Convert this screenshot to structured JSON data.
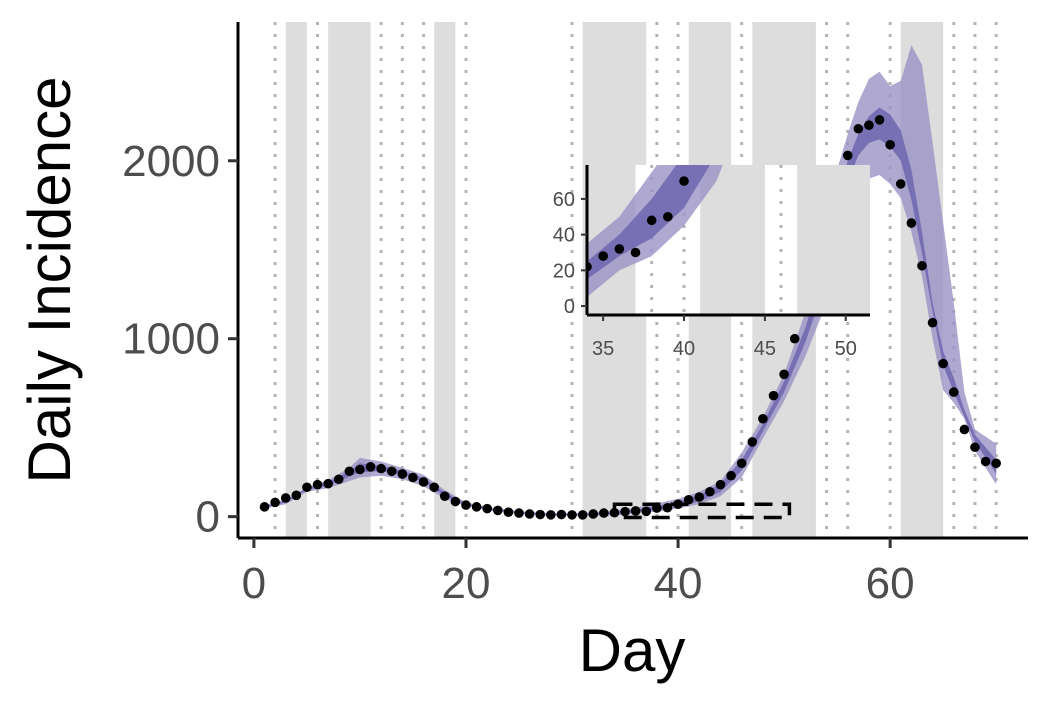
{
  "chart_data": {
    "type": "scatter",
    "xlabel": "Day",
    "ylabel": "Daily Incidence",
    "xlim": [
      -1.5,
      73
    ],
    "ylim": [
      -120,
      2780
    ],
    "x_ticks": [
      0,
      20,
      40,
      60
    ],
    "y_ticks": [
      0,
      1000,
      2000
    ],
    "grid": false,
    "colors": {
      "band_outer": "#9b93c7",
      "band_inner": "#6f66b0",
      "points": "#000000",
      "shade": "#dddddd",
      "dotted_lines": "#b3b3b3"
    },
    "shaded_periods": [
      [
        3,
        5
      ],
      [
        7,
        11
      ],
      [
        17,
        19
      ],
      [
        31,
        37
      ],
      [
        41,
        45
      ],
      [
        47,
        53
      ],
      [
        61,
        65
      ]
    ],
    "dotted_days": [
      2,
      6,
      12,
      14,
      16,
      20,
      30,
      38,
      40,
      46,
      54,
      56,
      60,
      66,
      68,
      70
    ],
    "observed": {
      "x": [
        1,
        2,
        3,
        4,
        5,
        6,
        7,
        8,
        9,
        10,
        11,
        12,
        13,
        14,
        15,
        16,
        17,
        18,
        19,
        20,
        21,
        22,
        23,
        24,
        25,
        26,
        27,
        28,
        29,
        30,
        31,
        32,
        33,
        34,
        35,
        36,
        37,
        38,
        39,
        40,
        41,
        42,
        43,
        44,
        45,
        46,
        47,
        48,
        49,
        50,
        51,
        52,
        53,
        54,
        55,
        56,
        57,
        58,
        59,
        60,
        61,
        62,
        63,
        64,
        65,
        66,
        67,
        68,
        69,
        70
      ],
      "y": [
        55,
        80,
        105,
        120,
        165,
        180,
        185,
        210,
        255,
        265,
        280,
        270,
        255,
        240,
        220,
        195,
        165,
        115,
        85,
        65,
        55,
        45,
        35,
        25,
        20,
        15,
        12,
        10,
        12,
        10,
        10,
        15,
        20,
        22,
        28,
        32,
        30,
        48,
        50,
        70,
        95,
        110,
        140,
        180,
        230,
        300,
        420,
        550,
        680,
        800,
        1000,
        1290,
        1630,
        1790,
        1900,
        2030,
        2180,
        2200,
        2230,
        2090,
        1870,
        1650,
        1410,
        1090,
        860,
        700,
        490,
        390,
        310,
        300
      ]
    },
    "band_outer": {
      "x": [
        1,
        3,
        5,
        7,
        9,
        10,
        12,
        14,
        16,
        18,
        20,
        22,
        25,
        28,
        31,
        34,
        36,
        38,
        40,
        42,
        44,
        46,
        48,
        50,
        52,
        54,
        55,
        56,
        57,
        58,
        59,
        60,
        61,
        62,
        63,
        64,
        65,
        66,
        67,
        68,
        70
      ],
      "lower": [
        45,
        70,
        140,
        160,
        200,
        220,
        230,
        210,
        170,
        100,
        60,
        35,
        15,
        5,
        5,
        5,
        20,
        28,
        45,
        70,
        115,
        220,
        440,
        650,
        900,
        1200,
        1400,
        1650,
        1850,
        1900,
        1920,
        1870,
        1790,
        1600,
        1350,
        1000,
        710,
        640,
        550,
        370,
        180
      ],
      "upper": [
        65,
        95,
        165,
        205,
        275,
        330,
        310,
        275,
        235,
        150,
        80,
        55,
        30,
        20,
        20,
        35,
        50,
        75,
        100,
        140,
        200,
        360,
        560,
        800,
        1150,
        1600,
        1950,
        2150,
        2330,
        2460,
        2500,
        2420,
        2450,
        2650,
        2540,
        2100,
        1650,
        1200,
        700,
        490,
        410
      ]
    },
    "band_inner": {
      "x": [
        1,
        3,
        5,
        7,
        9,
        10,
        12,
        14,
        16,
        18,
        20,
        22,
        25,
        28,
        31,
        34,
        36,
        38,
        40,
        42,
        44,
        46,
        48,
        50,
        52,
        54,
        55,
        56,
        57,
        58,
        59,
        60,
        61,
        62,
        63,
        64,
        65,
        66,
        67,
        68,
        70
      ],
      "lower": [
        50,
        80,
        150,
        175,
        225,
        250,
        255,
        235,
        195,
        115,
        68,
        42,
        20,
        10,
        10,
        15,
        28,
        38,
        55,
        85,
        140,
        260,
        480,
        700,
        980,
        1330,
        1600,
        1880,
        2030,
        2100,
        2120,
        2080,
        2000,
        1780,
        1480,
        1150,
        850,
        700,
        560,
        420,
        240
      ],
      "upper": [
        60,
        90,
        160,
        195,
        255,
        300,
        285,
        258,
        218,
        135,
        75,
        50,
        25,
        15,
        15,
        25,
        40,
        60,
        85,
        120,
        185,
        320,
        520,
        760,
        1060,
        1450,
        1760,
        2000,
        2150,
        2250,
        2300,
        2260,
        2170,
        1950,
        1600,
        1200,
        930,
        780,
        600,
        460,
        320
      ]
    },
    "highlight_box": {
      "x": [
        34,
        50.5
      ],
      "y": [
        -5,
        70
      ]
    },
    "inset": {
      "xlim": [
        34,
        51.5
      ],
      "ylim": [
        -5,
        79
      ],
      "x_ticks": [
        35,
        40,
        45,
        50
      ],
      "y_ticks": [
        0,
        20,
        40,
        60
      ]
    }
  }
}
